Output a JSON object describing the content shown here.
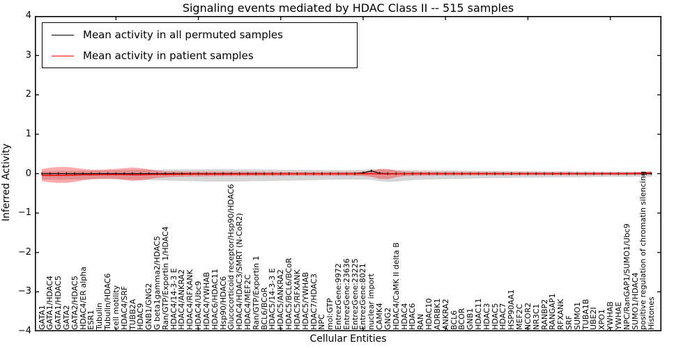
{
  "chart_data": {
    "type": "line",
    "title": "Signaling events mediated by HDAC Class II -- 515 samples",
    "xlabel": "Cellular Entities",
    "ylabel": "Inferred Activity",
    "ylim": [
      -4,
      4
    ],
    "ytick_labels": [
      "4",
      "3",
      "2",
      "1",
      "0",
      "−1",
      "−2",
      "−3",
      "−4"
    ],
    "ytick_values": [
      4,
      3,
      2,
      1,
      0,
      -1,
      -2,
      -3,
      -4
    ],
    "x_major_tick_indices": [
      9,
      19,
      29,
      39,
      49,
      59,
      69
    ],
    "legend_position": "upper left",
    "grid": false,
    "axis_color": "#000000",
    "categories": [
      "GATA1",
      "GATA1/HDAC4",
      "GATA1/HDAC5",
      "GATA2",
      "GATA2/HDAC5",
      "HDAC4/ER alpha",
      "ESR1",
      "Tubulin",
      "Tubulin/HDAC6",
      "cell motility",
      "HDAC4/SRF",
      "TUBB2A",
      "HDAC9",
      "GNB1/GNG2",
      "G beta1gamma2/HDAC5",
      "Ran/GTP/Exportin 1/HDAC4",
      "HDAC4/14-3-3 E",
      "HDAC4/ANKRA2",
      "HDAC4/RFXANK",
      "HDAC4/Ubc9",
      "HDAC4/YWHAB",
      "HDAC6/HDAC11",
      "Hsp90/HDAC6",
      "Glucocorticoid receptor/Hsp90/HDAC6",
      "HDAC4/HDAC3/SMRT (N-CoR2)",
      "HDAC4/MEF2C",
      "Ran/GTP/Exportin 1",
      "BCL6/BCoR",
      "HDAC5/14-3-3 E",
      "HDAC5/ANKRA2",
      "HDAC5/BCL6/BCoR",
      "HDAC5/RFXANK",
      "HDAC5/YWHAB",
      "HDAC7/HDAC3",
      "NPC",
      "mol:GTP",
      "EntrezGene:9972",
      "EntrezGene:23636",
      "EntrezGene:23225",
      "EntrezGene:8021",
      "nuclear import",
      "CAMK4",
      "GNG2",
      "HDAC4/CaMK II delta B",
      "HDAC4",
      "HDAC6",
      "RAN",
      "HDAC10",
      "ADRBK1",
      "ANKRA2",
      "BCL6",
      "BCOR",
      "GNB1",
      "HDAC11",
      "HDAC3",
      "HDAC5",
      "HDAC7",
      "HSP90AA1",
      "MEF2C",
      "NCOR2",
      "NR3C1",
      "RANBP2",
      "RANGAP1",
      "RFXANK",
      "SRF",
      "SUMO1",
      "TUBA1B",
      "UBE2I",
      "XPO1",
      "YWHAB",
      "YWHAE",
      "NPC/RanGAP1/SUMO1/Ubc9",
      "SUMO1/HDAC4",
      "positive regulation of chromatin silencing",
      "Histones"
    ],
    "series": [
      {
        "name": "Mean activity in all permuted samples",
        "color": "#000000",
        "band_color": "rgba(0,0,0,0.16)",
        "values": [
          0,
          0,
          0,
          0,
          0,
          0,
          0,
          0,
          0,
          0,
          0,
          0,
          0,
          0,
          0,
          0,
          0,
          0,
          0,
          0,
          0,
          0,
          0,
          0,
          0,
          0,
          0,
          0,
          0,
          0,
          0,
          0,
          0,
          0,
          0,
          0,
          0,
          0,
          0,
          0.02,
          0.07,
          0.01,
          0,
          0,
          0,
          0,
          0,
          0,
          0,
          0,
          0,
          0,
          0,
          0,
          0,
          0,
          0,
          0,
          0,
          0,
          0,
          0,
          0,
          0,
          0,
          0,
          0,
          0,
          0,
          0,
          0,
          0,
          0,
          0,
          0
        ],
        "band_upper": [
          0.06,
          0.065,
          0.07,
          0.07,
          0.07,
          0.075,
          0.08,
          0.08,
          0.085,
          0.09,
          0.09,
          0.095,
          0.1,
          0.1,
          0.1,
          0.105,
          0.11,
          0.11,
          0.11,
          0.11,
          0.115,
          0.115,
          0.115,
          0.11,
          0.11,
          0.11,
          0.11,
          0.105,
          0.105,
          0.1,
          0.1,
          0.1,
          0.1,
          0.095,
          0.095,
          0.09,
          0.09,
          0.09,
          0.095,
          0.1,
          0.115,
          0.11,
          0.1,
          0.095,
          0.09,
          0.09,
          0.085,
          0.085,
          0.08,
          0.08,
          0.08,
          0.075,
          0.075,
          0.075,
          0.07,
          0.07,
          0.07,
          0.07,
          0.065,
          0.065,
          0.065,
          0.06,
          0.06,
          0.06,
          0.06,
          0.055,
          0.055,
          0.055,
          0.05,
          0.05,
          0.05,
          0.05,
          0.05,
          0.05,
          0.05
        ],
        "band_lower": [
          -0.15,
          -0.15,
          -0.15,
          -0.15,
          -0.15,
          -0.145,
          -0.145,
          -0.14,
          -0.14,
          -0.145,
          -0.15,
          -0.155,
          -0.16,
          -0.165,
          -0.17,
          -0.175,
          -0.18,
          -0.185,
          -0.19,
          -0.195,
          -0.2,
          -0.2,
          -0.2,
          -0.2,
          -0.2,
          -0.195,
          -0.19,
          -0.19,
          -0.185,
          -0.18,
          -0.18,
          -0.175,
          -0.17,
          -0.165,
          -0.16,
          -0.155,
          -0.15,
          -0.15,
          -0.15,
          -0.15,
          -0.155,
          -0.19,
          -0.21,
          -0.2,
          -0.18,
          -0.165,
          -0.155,
          -0.15,
          -0.145,
          -0.14,
          -0.135,
          -0.13,
          -0.125,
          -0.12,
          -0.115,
          -0.11,
          -0.11,
          -0.105,
          -0.1,
          -0.1,
          -0.1,
          -0.095,
          -0.095,
          -0.09,
          -0.09,
          -0.09,
          -0.085,
          -0.085,
          -0.08,
          -0.08,
          -0.08,
          -0.08,
          -0.08,
          -0.08,
          -0.08
        ]
      },
      {
        "name": "Mean activity in patient samples",
        "color": "#ff0000",
        "band_color": "rgba(255,0,0,0.33)",
        "values": [
          -0.04,
          -0.045,
          -0.045,
          -0.04,
          -0.035,
          -0.03,
          -0.03,
          -0.025,
          -0.025,
          -0.025,
          -0.025,
          -0.03,
          -0.03,
          -0.025,
          -0.02,
          -0.02,
          -0.015,
          -0.015,
          -0.012,
          -0.012,
          -0.01,
          -0.01,
          -0.01,
          -0.01,
          -0.008,
          -0.008,
          -0.008,
          -0.006,
          -0.006,
          -0.005,
          -0.005,
          -0.005,
          -0.005,
          -0.004,
          -0.004,
          -0.004,
          -0.003,
          -0.003,
          -0.003,
          -0.002,
          0,
          -0.005,
          -0.008,
          -0.005,
          -0.002,
          0,
          0,
          0,
          0,
          0,
          0,
          0,
          0,
          0,
          0,
          0,
          0,
          0,
          0,
          0,
          0,
          0,
          0,
          0,
          0,
          0,
          0,
          0,
          0,
          0,
          0,
          0.002,
          0.004,
          0.01,
          0.02
        ],
        "band_upper": [
          0.12,
          0.15,
          0.17,
          0.17,
          0.15,
          0.12,
          0.1,
          0.1,
          0.11,
          0.12,
          0.14,
          0.16,
          0.14,
          0.11,
          0.08,
          0.06,
          0.06,
          0.055,
          0.05,
          0.05,
          0.05,
          0.05,
          0.05,
          0.05,
          0.048,
          0.048,
          0.046,
          0.046,
          0.045,
          0.045,
          0.044,
          0.044,
          0.043,
          0.043,
          0.042,
          0.042,
          0.042,
          0.042,
          0.045,
          0.05,
          0.07,
          0.12,
          0.12,
          0.08,
          0.055,
          0.048,
          0.045,
          0.044,
          0.043,
          0.042,
          0.041,
          0.04,
          0.04,
          0.04,
          0.039,
          0.039,
          0.038,
          0.038,
          0.037,
          0.037,
          0.036,
          0.036,
          0.035,
          0.035,
          0.035,
          0.034,
          0.034,
          0.034,
          0.033,
          0.033,
          0.033,
          0.034,
          0.036,
          0.045,
          0.06
        ],
        "band_lower": [
          -0.19,
          -0.22,
          -0.235,
          -0.235,
          -0.21,
          -0.17,
          -0.14,
          -0.13,
          -0.125,
          -0.13,
          -0.16,
          -0.185,
          -0.17,
          -0.14,
          -0.11,
          -0.09,
          -0.08,
          -0.075,
          -0.07,
          -0.068,
          -0.066,
          -0.064,
          -0.062,
          -0.06,
          -0.06,
          -0.058,
          -0.058,
          -0.056,
          -0.056,
          -0.055,
          -0.054,
          -0.053,
          -0.052,
          -0.051,
          -0.05,
          -0.05,
          -0.05,
          -0.05,
          -0.052,
          -0.055,
          -0.08,
          -0.13,
          -0.14,
          -0.09,
          -0.06,
          -0.052,
          -0.05,
          -0.048,
          -0.047,
          -0.046,
          -0.045,
          -0.044,
          -0.043,
          -0.042,
          -0.042,
          -0.041,
          -0.04,
          -0.04,
          -0.039,
          -0.039,
          -0.038,
          -0.038,
          -0.037,
          -0.037,
          -0.036,
          -0.036,
          -0.035,
          -0.035,
          -0.034,
          -0.034,
          -0.034,
          -0.033,
          -0.033,
          -0.032,
          -0.03
        ]
      }
    ]
  }
}
